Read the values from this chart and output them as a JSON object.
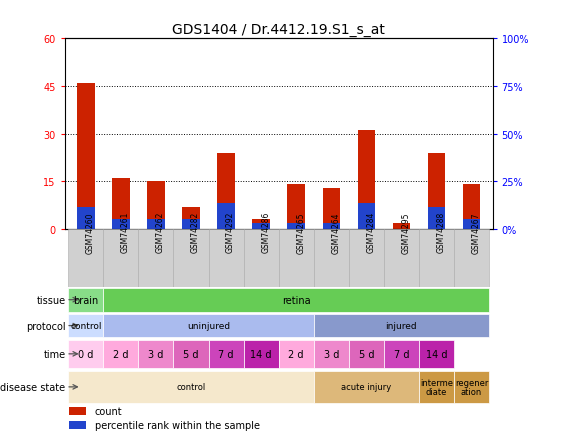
{
  "title": "GDS1404 / Dr.4412.19.S1_s_at",
  "samples": [
    "GSM74260",
    "GSM74261",
    "GSM74262",
    "GSM74282",
    "GSM74292",
    "GSM74286",
    "GSM74265",
    "GSM74264",
    "GSM74284",
    "GSM74295",
    "GSM74288",
    "GSM74267"
  ],
  "count_values": [
    46,
    16,
    15,
    7,
    24,
    3,
    14,
    13,
    31,
    2,
    24,
    14
  ],
  "pct_values": [
    7,
    3,
    3,
    3,
    8,
    2,
    2,
    2,
    8,
    0,
    7,
    3
  ],
  "ylim_left": [
    0,
    60
  ],
  "ylim_right": [
    0,
    100
  ],
  "yticks_left": [
    0,
    15,
    30,
    45,
    60
  ],
  "yticks_right": [
    0,
    25,
    50,
    75,
    100
  ],
  "ytick_labels_left": [
    "0",
    "15",
    "30",
    "45",
    "60"
  ],
  "ytick_labels_right": [
    "0%",
    "25%",
    "50%",
    "75%",
    "100%"
  ],
  "bar_color_count": "#cc2200",
  "bar_color_pct": "#2244cc",
  "bar_width": 0.5,
  "tissue_cells": [
    {
      "text": "brain",
      "colspan": 1,
      "color": "#88dd88"
    },
    {
      "text": "retina",
      "colspan": 11,
      "color": "#66cc55"
    }
  ],
  "protocol_cells": [
    {
      "text": "control",
      "colspan": 1,
      "color": "#ccddff"
    },
    {
      "text": "uninjured",
      "colspan": 6,
      "color": "#aabbee"
    },
    {
      "text": "injured",
      "colspan": 5,
      "color": "#8899cc"
    }
  ],
  "time_cells": [
    {
      "text": "0 d",
      "colspan": 1,
      "color": "#ffccee"
    },
    {
      "text": "2 d",
      "colspan": 1,
      "color": "#ffaadd"
    },
    {
      "text": "3 d",
      "colspan": 1,
      "color": "#ee88cc"
    },
    {
      "text": "5 d",
      "colspan": 1,
      "color": "#dd66bb"
    },
    {
      "text": "7 d",
      "colspan": 1,
      "color": "#cc44bb"
    },
    {
      "text": "14 d",
      "colspan": 1,
      "color": "#bb22aa"
    },
    {
      "text": "2 d",
      "colspan": 1,
      "color": "#ffaadd"
    },
    {
      "text": "3 d",
      "colspan": 1,
      "color": "#ee88cc"
    },
    {
      "text": "5 d",
      "colspan": 1,
      "color": "#dd66bb"
    },
    {
      "text": "7 d",
      "colspan": 1,
      "color": "#cc44bb"
    },
    {
      "text": "14 d",
      "colspan": 1,
      "color": "#bb22aa"
    }
  ],
  "disease_cells": [
    {
      "text": "control",
      "colspan": 7,
      "color": "#f5e8cc"
    },
    {
      "text": "acute injury",
      "colspan": 3,
      "color": "#ddb87a"
    },
    {
      "text": "interme\ndiate",
      "colspan": 1,
      "color": "#cc9944"
    },
    {
      "text": "regener\nation",
      "colspan": 1,
      "color": "#cc9944"
    }
  ],
  "bg_color": "#ffffff"
}
